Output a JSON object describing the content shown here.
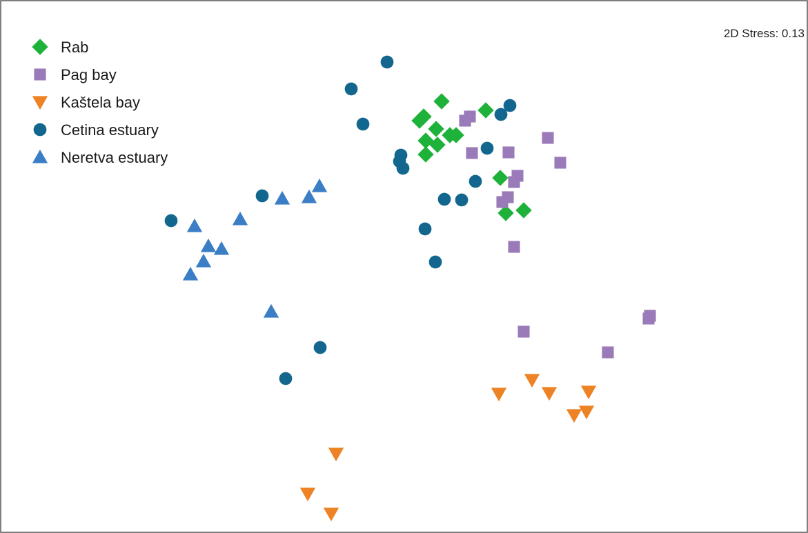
{
  "chart_data": {
    "type": "scatter",
    "title": "",
    "xlabel": "",
    "ylabel": "",
    "annotation": "2D Stress: 0.13",
    "grid": false,
    "legend_position": "top-left",
    "series": [
      {
        "name": "Rab",
        "marker": "diamond",
        "color": "#1fb23a",
        "points": [
          [
            608,
            175
          ],
          [
            614,
            169
          ],
          [
            617,
            204
          ],
          [
            632,
            187
          ],
          [
            634,
            210
          ],
          [
            640,
            147
          ],
          [
            652,
            196
          ],
          [
            661,
            196
          ],
          [
            704,
            160
          ],
          [
            617,
            224
          ],
          [
            725,
            258
          ],
          [
            733,
            309
          ],
          [
            759,
            305
          ]
        ]
      },
      {
        "name": "Pag bay",
        "marker": "square",
        "color": "#9a7ab8",
        "points": [
          [
            674,
            175
          ],
          [
            681,
            169
          ],
          [
            684,
            222
          ],
          [
            737,
            221
          ],
          [
            794,
            200
          ],
          [
            812,
            236
          ],
          [
            750,
            255
          ],
          [
            745,
            264
          ],
          [
            728,
            293
          ],
          [
            736,
            286
          ],
          [
            745,
            358
          ],
          [
            759,
            481
          ],
          [
            881,
            511
          ],
          [
            940,
            462
          ],
          [
            942,
            458
          ]
        ]
      },
      {
        "name": "Kaštela bay",
        "marker": "triangle-down",
        "color": "#ed8325",
        "points": [
          [
            723,
            571
          ],
          [
            771,
            551
          ],
          [
            796,
            570
          ],
          [
            832,
            602
          ],
          [
            850,
            597
          ],
          [
            853,
            568
          ],
          [
            487,
            658
          ],
          [
            446,
            716
          ],
          [
            480,
            745
          ]
        ]
      },
      {
        "name": "Cetina estuary",
        "marker": "circle",
        "color": "#13678e",
        "points": [
          [
            561,
            90
          ],
          [
            509,
            129
          ],
          [
            526,
            180
          ],
          [
            739,
            153
          ],
          [
            726,
            166
          ],
          [
            706,
            215
          ],
          [
            581,
            225
          ],
          [
            579,
            234
          ],
          [
            584,
            244
          ],
          [
            689,
            263
          ],
          [
            644,
            289
          ],
          [
            669,
            290
          ],
          [
            616,
            332
          ],
          [
            631,
            380
          ],
          [
            380,
            284
          ],
          [
            248,
            320
          ],
          [
            464,
            504
          ],
          [
            414,
            549
          ]
        ]
      },
      {
        "name": "Neretva estuary",
        "marker": "triangle-up",
        "color": "#3c7ec6",
        "points": [
          [
            463,
            270
          ],
          [
            448,
            286
          ],
          [
            409,
            288
          ],
          [
            348,
            318
          ],
          [
            282,
            328
          ],
          [
            302,
            357
          ],
          [
            321,
            361
          ],
          [
            295,
            379
          ],
          [
            276,
            398
          ],
          [
            393,
            452
          ]
        ]
      }
    ]
  }
}
